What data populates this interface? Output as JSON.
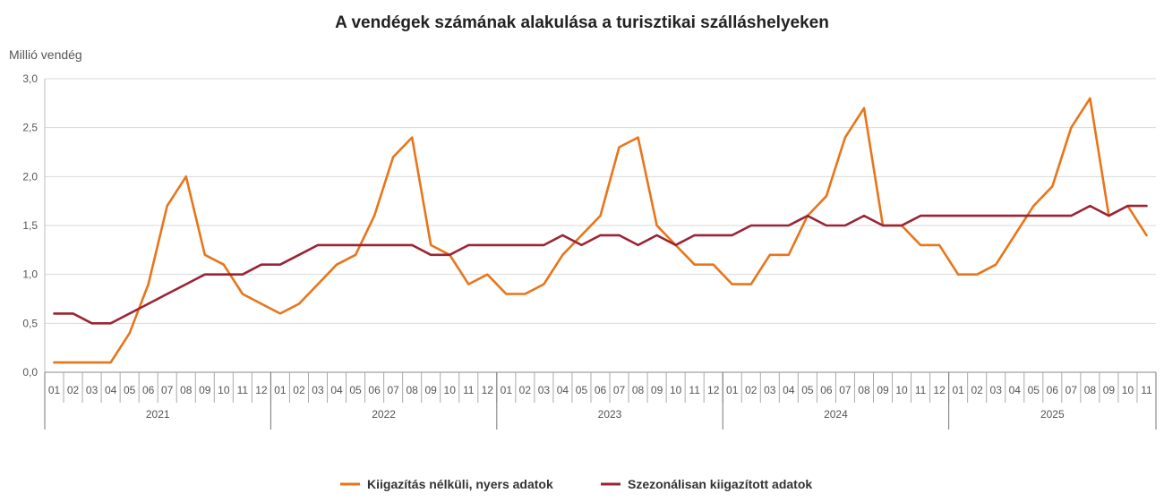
{
  "chart_data": {
    "type": "line",
    "title": "A vendégek számának alakulása a turisztikai szálláshelyeken",
    "ylabel": "Millió vendég",
    "xlabel": "",
    "ylim": [
      0,
      3
    ],
    "y_ticks": [
      "0,0",
      "0,5",
      "1,0",
      "1,5",
      "2,0",
      "2,5",
      "3,0"
    ],
    "y_tick_values": [
      0,
      0.5,
      1.0,
      1.5,
      2.0,
      2.5,
      3.0
    ],
    "grid": true,
    "legend_position": "bottom",
    "years": [
      "2021",
      "2022",
      "2023",
      "2024",
      "2025"
    ],
    "year_month_counts": [
      12,
      12,
      12,
      12,
      11
    ],
    "x": [
      "01",
      "02",
      "03",
      "04",
      "05",
      "06",
      "07",
      "08",
      "09",
      "10",
      "11",
      "12",
      "01",
      "02",
      "03",
      "04",
      "05",
      "06",
      "07",
      "08",
      "09",
      "10",
      "11",
      "12",
      "01",
      "02",
      "03",
      "04",
      "05",
      "06",
      "07",
      "08",
      "09",
      "10",
      "11",
      "12",
      "01",
      "02",
      "03",
      "04",
      "05",
      "06",
      "07",
      "08",
      "09",
      "10",
      "11",
      "12",
      "01",
      "02",
      "03",
      "04",
      "05",
      "06",
      "07",
      "08",
      "09",
      "10",
      "11"
    ],
    "series": [
      {
        "name": "Kiigazítás nélküli, nyers adatok",
        "color": "#E8751A",
        "values": [
          0.1,
          0.1,
          0.1,
          0.1,
          0.4,
          0.9,
          1.7,
          2.0,
          1.2,
          1.1,
          0.8,
          0.7,
          0.6,
          0.7,
          0.9,
          1.1,
          1.2,
          1.6,
          2.2,
          2.4,
          1.3,
          1.2,
          0.9,
          1.0,
          0.8,
          0.8,
          0.9,
          1.2,
          1.4,
          1.6,
          2.3,
          2.4,
          1.5,
          1.3,
          1.1,
          1.1,
          0.9,
          0.9,
          1.2,
          1.2,
          1.6,
          1.8,
          2.4,
          2.7,
          1.5,
          1.5,
          1.3,
          1.3,
          1.0,
          1.0,
          1.1,
          1.4,
          1.7,
          1.9,
          2.5,
          2.8,
          1.6,
          1.7,
          1.4
        ]
      },
      {
        "name": "Szezonálisan kiigazított adatok",
        "color": "#9B2335",
        "values": [
          0.6,
          0.6,
          0.5,
          0.5,
          0.6,
          0.7,
          0.8,
          0.9,
          1.0,
          1.0,
          1.0,
          1.1,
          1.1,
          1.2,
          1.3,
          1.3,
          1.3,
          1.3,
          1.3,
          1.3,
          1.2,
          1.2,
          1.3,
          1.3,
          1.3,
          1.3,
          1.3,
          1.4,
          1.3,
          1.4,
          1.4,
          1.3,
          1.4,
          1.3,
          1.4,
          1.4,
          1.4,
          1.5,
          1.5,
          1.5,
          1.6,
          1.5,
          1.5,
          1.6,
          1.5,
          1.5,
          1.6,
          1.6,
          1.6,
          1.6,
          1.6,
          1.6,
          1.6,
          1.6,
          1.6,
          1.7,
          1.6,
          1.7,
          1.7
        ]
      }
    ]
  }
}
